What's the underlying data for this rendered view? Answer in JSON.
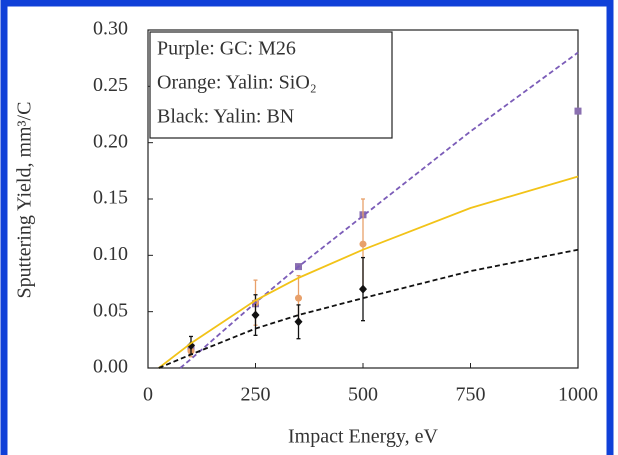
{
  "chart_data": {
    "type": "scatter",
    "xlabel": "Impact Energy, eV",
    "ylabel": "Sputtering Yield, mm³/C",
    "legend_text": [
      "Purple: GC: M26",
      "Orange: Yalin: SiO₂",
      "Black: Yalin: BN"
    ],
    "xlim": [
      0,
      1000
    ],
    "ylim": [
      0,
      0.3
    ],
    "xticks": [
      0,
      250,
      500,
      750,
      1000
    ],
    "yticks": [
      {
        "value": 0,
        "label": "0.00"
      },
      0.05,
      {
        "value": 0.1,
        "label": "0.10"
      },
      0.15,
      {
        "value": 0.2,
        "label": "0.20"
      },
      0.25,
      {
        "value": 0.3,
        "label": "0.30"
      }
    ],
    "series": [
      {
        "color": "#8a6fb0",
        "marker": "square",
        "x": [
          100,
          250,
          350,
          500,
          1000
        ],
        "values": [
          0.018,
          0.057,
          0.09,
          0.136,
          0.228
        ]
      },
      {
        "color": "#e8a06a",
        "marker": "circle",
        "x": [
          100,
          250,
          350,
          500
        ],
        "values": [
          0.015,
          0.058,
          0.062,
          0.11
        ],
        "errors": [
          0.005,
          0.02,
          0.02,
          0.04
        ]
      },
      {
        "color": "#111111",
        "marker": "diamond",
        "x": [
          100,
          250,
          350,
          500
        ],
        "values": [
          0.02,
          0.047,
          0.041,
          0.07
        ],
        "errors": [
          0.008,
          0.018,
          0.015,
          0.028
        ]
      },
      {
        "color": "#7b5cb8",
        "line": "dashed",
        "x": [
          75,
          100,
          250,
          350,
          500,
          750,
          1000
        ],
        "values": [
          0,
          0.008,
          0.058,
          0.09,
          0.135,
          0.21,
          0.28
        ]
      },
      {
        "color": "#f2c318",
        "line": "solid",
        "x": [
          25,
          100,
          250,
          350,
          500,
          750,
          1000
        ],
        "values": [
          0,
          0.022,
          0.06,
          0.08,
          0.105,
          0.142,
          0.17
        ]
      },
      {
        "color": "#111111",
        "line": "dashed",
        "x": [
          25,
          100,
          250,
          350,
          500,
          750,
          1000
        ],
        "values": [
          0,
          0.012,
          0.035,
          0.047,
          0.062,
          0.086,
          0.105
        ]
      }
    ]
  }
}
